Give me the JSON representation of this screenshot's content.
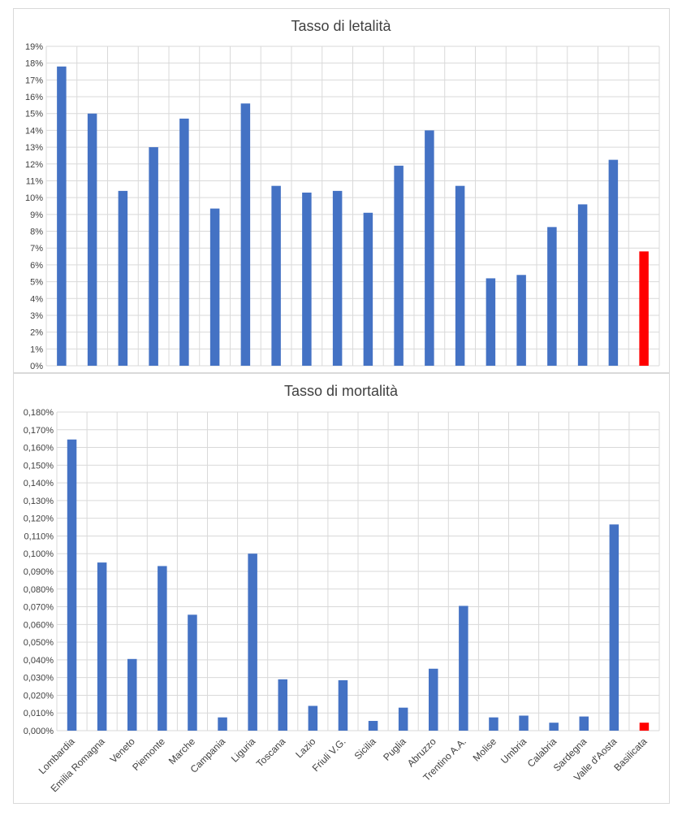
{
  "colors": {
    "bar": "#4472c4",
    "highlight": "#ff0000",
    "grid": "#d9d9d9",
    "text": "#404040"
  },
  "chart_data": [
    {
      "type": "bar",
      "title": "Tasso di letalità",
      "categories": [
        "Lombardia",
        "Emilia Romagna",
        "Veneto",
        "Piemonte",
        "Marche",
        "Campania",
        "Liguria",
        "Toscana",
        "Lazio",
        "Friuli V.G.",
        "Sicilia",
        "Puglia",
        "Abruzzo",
        "Trentino A.A.",
        "Molise",
        "Umbria",
        "Calabria",
        "Sardegna",
        "Valle d'Aosta",
        "Basilicata"
      ],
      "values": [
        17.8,
        15.0,
        10.4,
        13.0,
        14.7,
        9.35,
        15.6,
        10.7,
        10.3,
        10.4,
        9.1,
        11.9,
        14.0,
        10.7,
        5.2,
        5.4,
        8.25,
        9.6,
        12.25,
        6.8
      ],
      "highlight_index": 19,
      "ylim": [
        0,
        19
      ],
      "yticks": [
        "0%",
        "1%",
        "2%",
        "3%",
        "4%",
        "5%",
        "6%",
        "7%",
        "8%",
        "9%",
        "10%",
        "11%",
        "12%",
        "13%",
        "14%",
        "15%",
        "16%",
        "17%",
        "18%",
        "19%"
      ],
      "show_category_labels": false,
      "grid": true,
      "xlabel": "",
      "ylabel": ""
    },
    {
      "type": "bar",
      "title": "Tasso di mortalità",
      "categories": [
        "Lombardia",
        "Emilia Romagna",
        "Veneto",
        "Piemonte",
        "Marche",
        "Campania",
        "Liguria",
        "Toscana",
        "Lazio",
        "Friuli V.G.",
        "Sicilia",
        "Puglia",
        "Abruzzo",
        "Trentino A.A.",
        "Molise",
        "Umbria",
        "Calabria",
        "Sardegna",
        "Valle d'Aosta",
        "Basilicata"
      ],
      "values": [
        0.1645,
        0.095,
        0.0405,
        0.093,
        0.0655,
        0.0075,
        0.1,
        0.029,
        0.014,
        0.0285,
        0.0055,
        0.013,
        0.035,
        0.0705,
        0.0075,
        0.0085,
        0.0045,
        0.008,
        0.1165,
        0.0045
      ],
      "highlight_index": 19,
      "ylim": [
        0,
        0.18
      ],
      "yticks": [
        "0,000%",
        "0,010%",
        "0,020%",
        "0,030%",
        "0,040%",
        "0,050%",
        "0,060%",
        "0,070%",
        "0,080%",
        "0,090%",
        "0,100%",
        "0,110%",
        "0,120%",
        "0,130%",
        "0,140%",
        "0,150%",
        "0,160%",
        "0,170%",
        "0,180%"
      ],
      "show_category_labels": true,
      "grid": true,
      "xlabel": "",
      "ylabel": ""
    }
  ]
}
